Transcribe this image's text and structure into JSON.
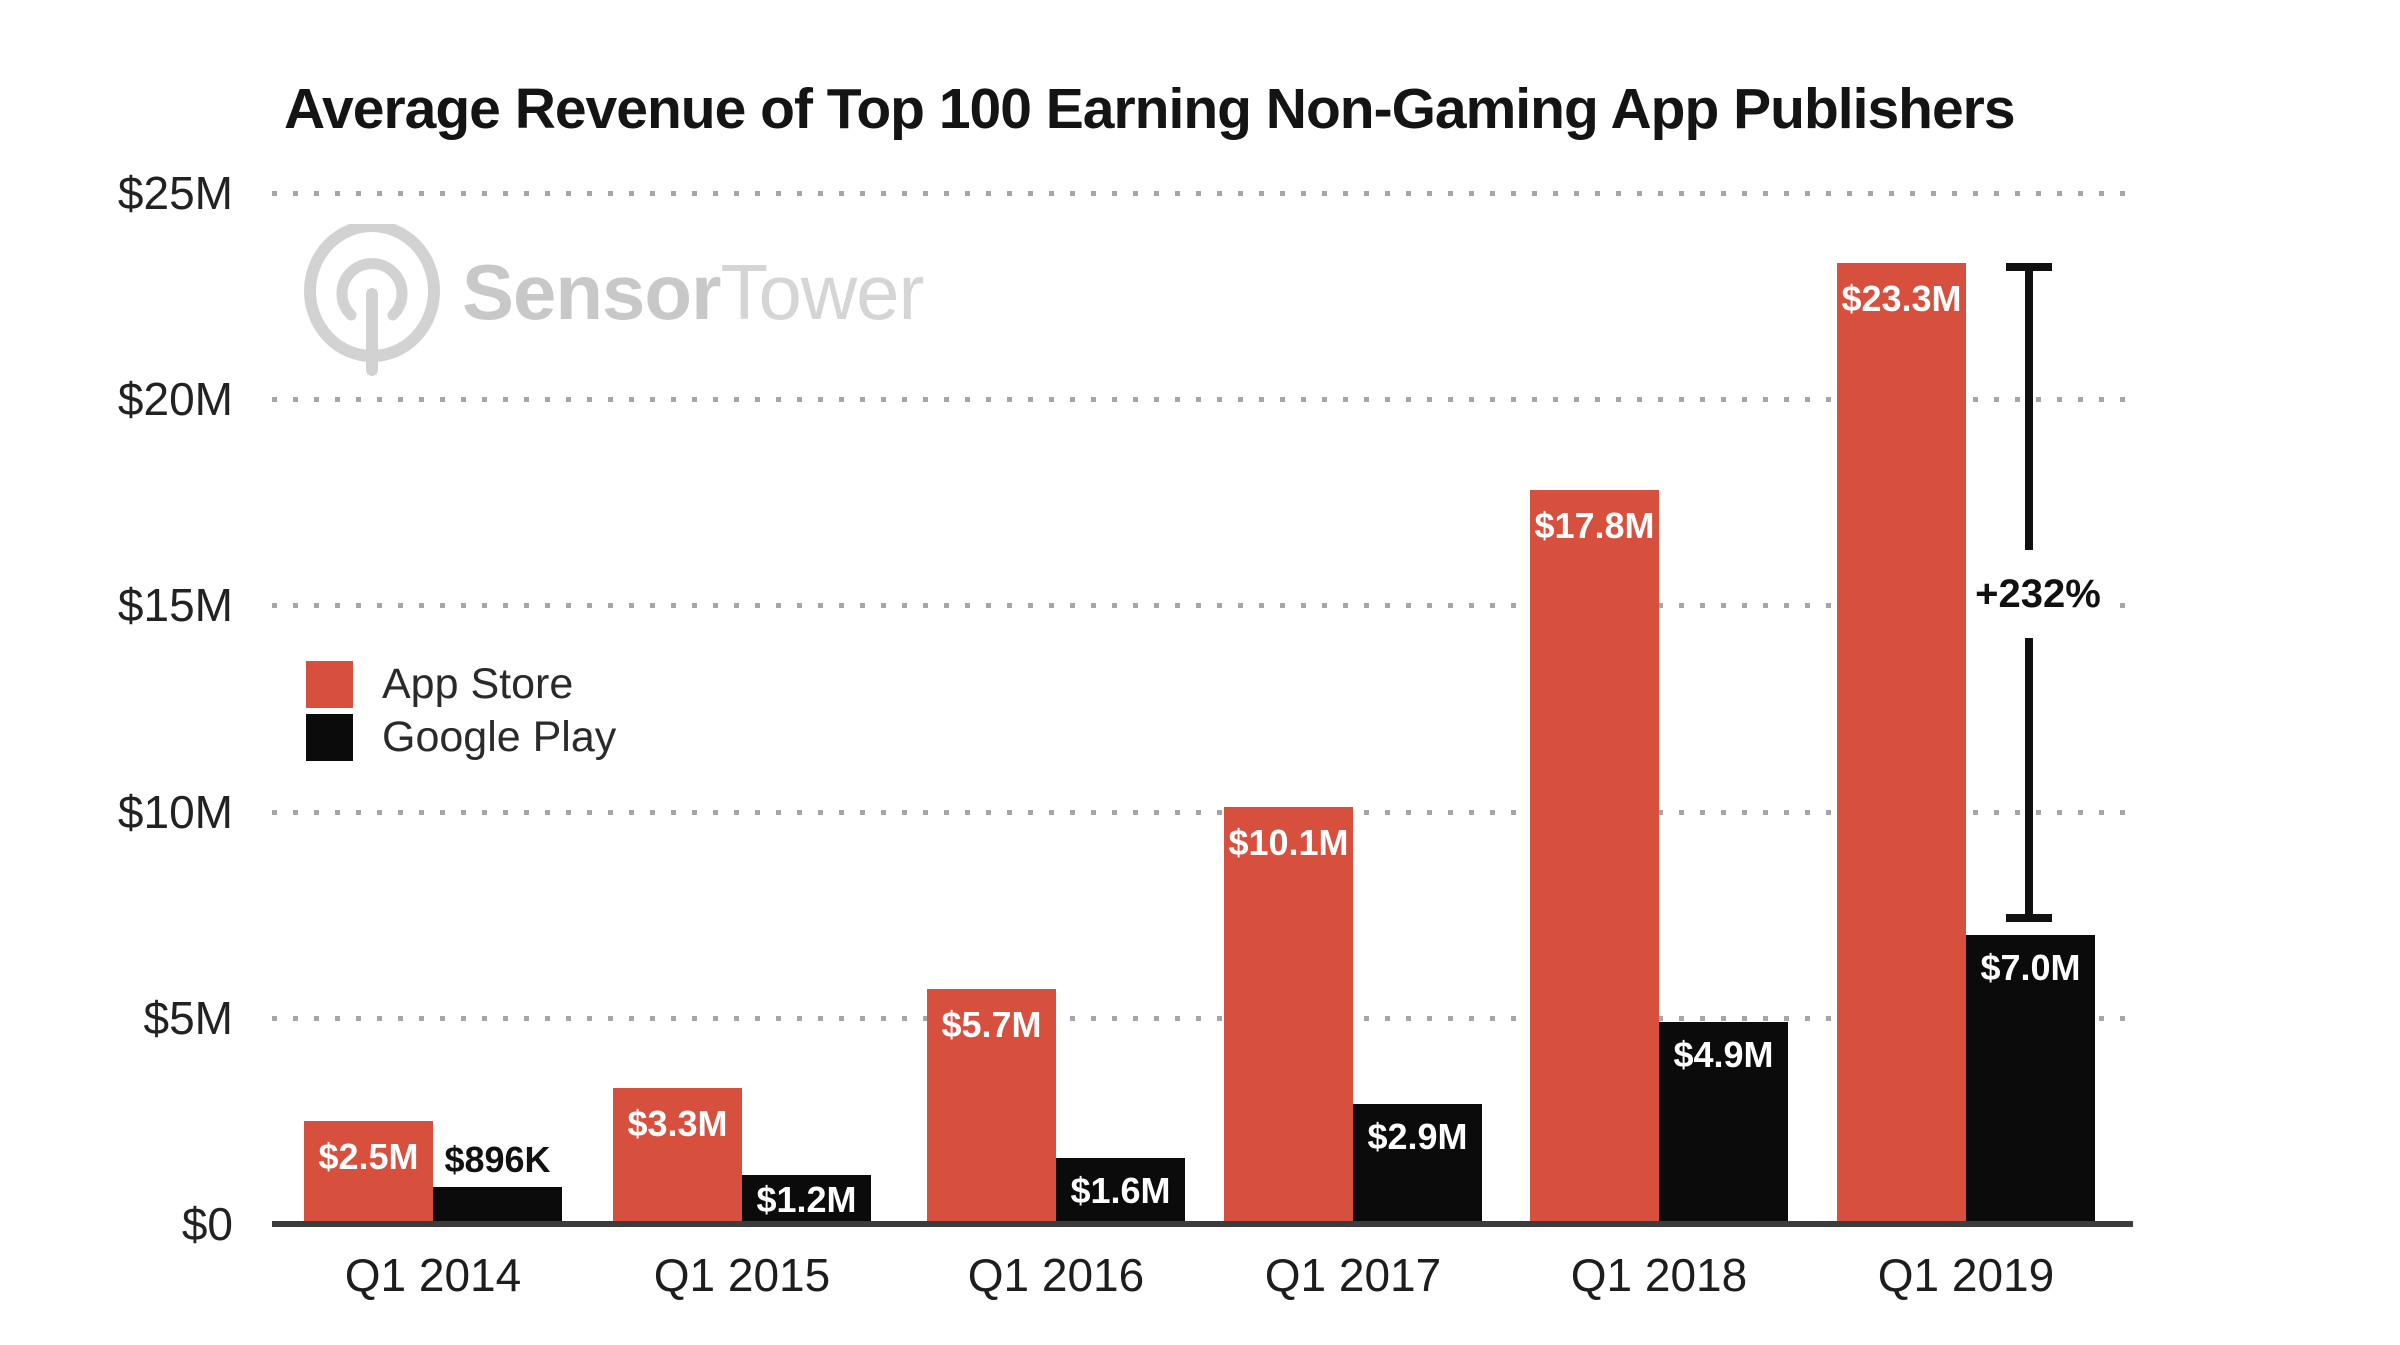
{
  "watermark": {
    "brand_bold": "Sensor",
    "brand_light": "Tower"
  },
  "chart_data": {
    "type": "bar",
    "title": "Average Revenue of Top 100 Earning Non-Gaming App Publishers",
    "categories": [
      "Q1 2014",
      "Q1 2015",
      "Q1 2016",
      "Q1 2017",
      "Q1 2018",
      "Q1 2019"
    ],
    "series": [
      {
        "name": "App Store",
        "color": "#d7503e",
        "values": [
          2.5,
          3.3,
          5.7,
          10.1,
          17.8,
          23.3
        ],
        "labels": [
          "$2.5M",
          "$3.3M",
          "$5.7M",
          "$10.1M",
          "$17.8M",
          "$23.3M"
        ],
        "label_color": "#ffffff"
      },
      {
        "name": "Google Play",
        "color": "#0b0b0b",
        "values": [
          0.896,
          1.2,
          1.6,
          2.9,
          4.9,
          7.0
        ],
        "labels": [
          "$896K",
          "$1.2M",
          "$1.6M",
          "$2.9M",
          "$4.9M",
          "$7.0M"
        ],
        "label_color": "#ffffff",
        "first_label_outside_color": "#111111"
      }
    ],
    "y_axis": {
      "ticks": [
        {
          "label": "$25M",
          "value": 25
        },
        {
          "label": "$20M",
          "value": 20
        },
        {
          "label": "$15M",
          "value": 15
        },
        {
          "label": "$10M",
          "value": 10
        },
        {
          "label": "$5M",
          "value": 5
        },
        {
          "label": "$0",
          "value": 0
        }
      ],
      "ylim": [
        0,
        25
      ]
    },
    "grid": "dotted-horizontal",
    "legend_position": "middle-left",
    "annotation": {
      "text": "+232%",
      "at_category": "Q1 2019"
    }
  }
}
